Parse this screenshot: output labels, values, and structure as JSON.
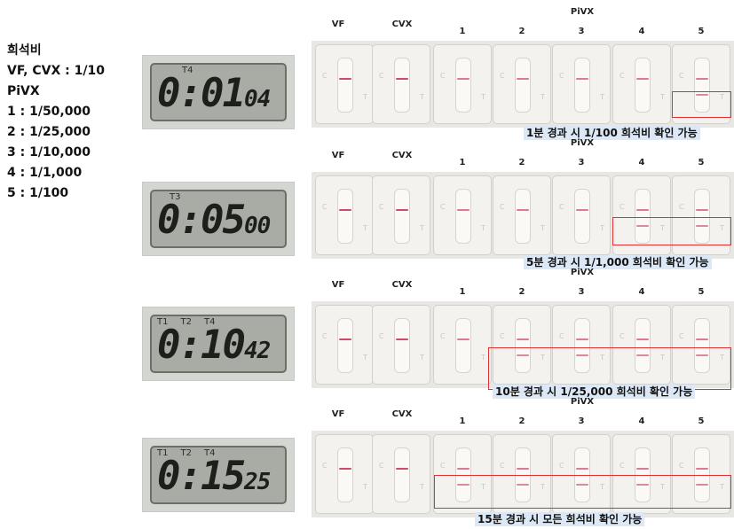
{
  "legend": {
    "title": "희석비",
    "lines": [
      "VF, CVX : 1/10",
      "PiVX",
      "1 : 1/50,000",
      "2 : 1/25,000",
      "3 : 1/10,000",
      "4 : 1/1,000",
      "5 : 1/100"
    ]
  },
  "headers": {
    "vf": "VF",
    "cvx": "CVX",
    "pivx": "PiVX",
    "numbers": [
      "1",
      "2",
      "3",
      "4",
      "5"
    ]
  },
  "panels": [
    {
      "timer": {
        "tags": [
          "",
          "",
          "T4"
        ],
        "main": "0:01",
        "sec": "04"
      },
      "caption": "1분 경과 시 1/100 희석비 확인 가능"
    },
    {
      "timer": {
        "tags": [
          "",
          "T3",
          ""
        ],
        "main": "0:05",
        "sec": "00"
      },
      "caption": "5분 경과 시 1/1,000 희석비 확인 가능"
    },
    {
      "timer": {
        "tags": [
          "T1",
          "T2",
          "T4"
        ],
        "main": "0:10",
        "sec": "42"
      },
      "caption": "10분 경과 시 1/25,000 희석비 확인 가능"
    },
    {
      "timer": {
        "tags": [
          "T1",
          "T2",
          "T4"
        ],
        "main": "0:15",
        "sec": "25"
      },
      "caption": "15분 경과 시 모든 희석비 확인 가능"
    }
  ],
  "cassette_labels": {
    "c": "C",
    "t": "T"
  }
}
